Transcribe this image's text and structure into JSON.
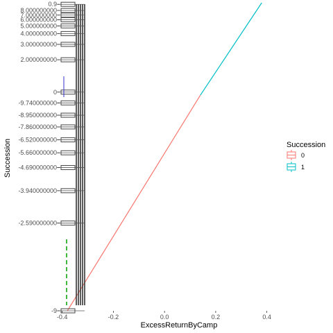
{
  "chart_data": {
    "type": "line",
    "xlabel": "ExcessReturnByCamp",
    "ylabel": "Succession",
    "x_ticks": [
      "-0.4",
      "-0.2",
      "0.0",
      "0.2",
      "0.4"
    ],
    "x_tick_values": [
      -0.4,
      -0.2,
      0.0,
      0.2,
      0.4
    ],
    "xlim": [
      -0.41,
      0.42
    ],
    "grid": false,
    "legend": {
      "title": "Succession",
      "placement": "right",
      "entries": [
        {
          "label": "0",
          "color": "#f8766d"
        },
        {
          "label": "1",
          "color": "#00bfc4"
        }
      ]
    },
    "series": [
      {
        "name": "0",
        "color": "#f8766d",
        "x": [
          -0.38,
          0.14
        ],
        "y_frac": [
          0.0,
          0.7
        ]
      },
      {
        "name": "1",
        "color": "#00bfc4",
        "x": [
          0.14,
          0.38
        ],
        "y_frac": [
          0.7,
          1.0
        ]
      }
    ],
    "y_ticks": [
      {
        "label": "0.9",
        "frac": 0.995
      },
      {
        "label": "8.000000000",
        "frac": 0.975
      },
      {
        "label": "7.000000000",
        "frac": 0.96
      },
      {
        "label": "6.000000000",
        "frac": 0.945
      },
      {
        "label": "5.000000000",
        "frac": 0.925
      },
      {
        "label": "4.000000000",
        "frac": 0.9
      },
      {
        "label": "3.000000000",
        "frac": 0.865
      },
      {
        "label": "2.000000000",
        "frac": 0.815
      },
      {
        "label": "0",
        "frac": 0.71
      },
      {
        "label": "-9.740000000",
        "frac": 0.675
      },
      {
        "label": "-8.950000000",
        "frac": 0.635
      },
      {
        "label": "-7.860000000",
        "frac": 0.597
      },
      {
        "label": "-6.520000000",
        "frac": 0.555
      },
      {
        "label": "-5.660000000",
        "frac": 0.513
      },
      {
        "label": "-4.690000000",
        "frac": 0.465
      },
      {
        "label": "-3.940000000",
        "frac": 0.39
      },
      {
        "label": "-2.590000000",
        "frac": 0.285
      },
      {
        "label": "-9",
        "frac": 0.0
      }
    ],
    "boxplot_band": {
      "x_range": [
        -0.5,
        -0.4
      ],
      "x_ticks_dense": 20
    }
  }
}
